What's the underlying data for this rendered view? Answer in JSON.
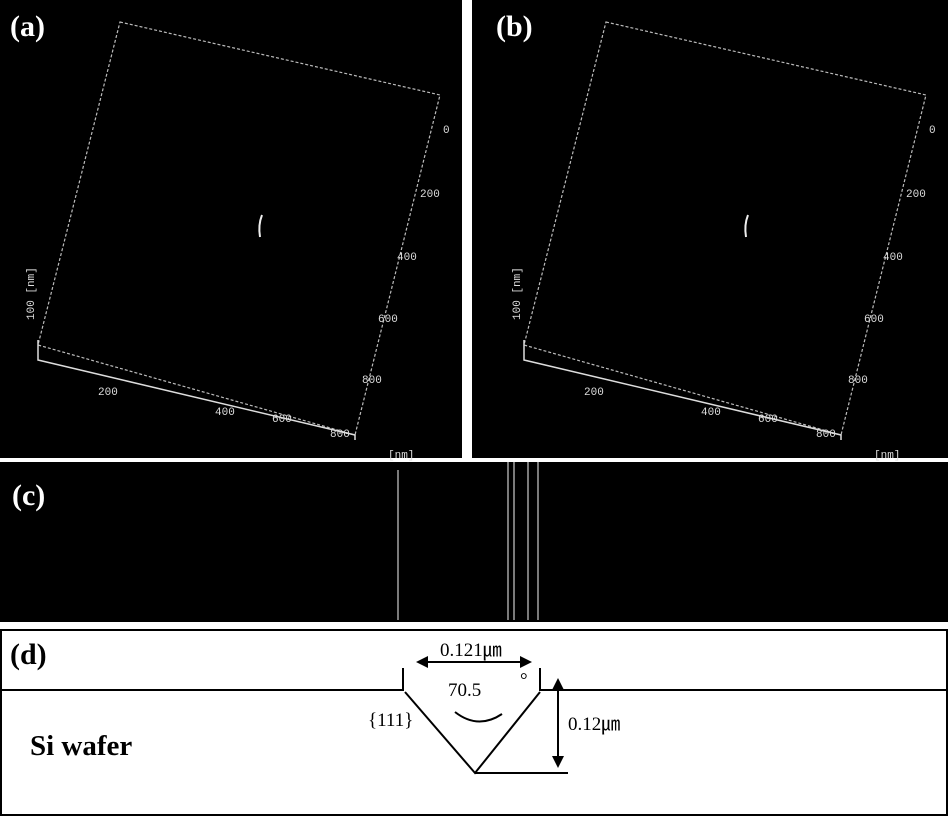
{
  "panels": {
    "a": {
      "label": "(a)",
      "x_ticks": [
        "200",
        "400",
        "600",
        "800"
      ],
      "y_ticks": [
        "0",
        "200",
        "400",
        "600",
        "800"
      ],
      "unit": "[nm]",
      "z_label": "100 [nm]"
    },
    "b": {
      "label": "(b)",
      "x_ticks": [
        "200",
        "400",
        "600",
        "800"
      ],
      "y_ticks": [
        "0",
        "200",
        "400",
        "600",
        "800"
      ],
      "unit": "[nm]",
      "z_label": "100 [nm]"
    },
    "c": {
      "label": "(c)"
    },
    "d": {
      "label": "(d)",
      "material": "Si wafer",
      "plane": "{111}",
      "width": "0.121㎛",
      "angle": "70.5",
      "degree": "°",
      "depth": "0.12㎛"
    }
  }
}
